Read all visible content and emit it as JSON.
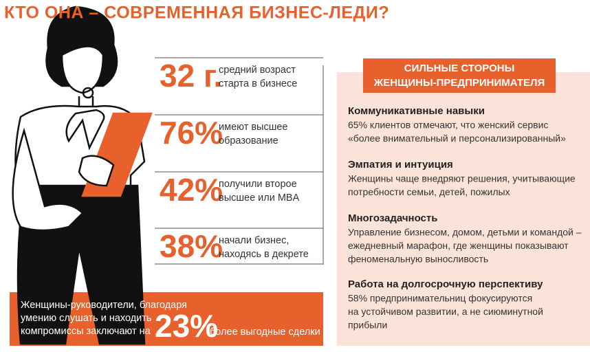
{
  "title": "КТО ОНА – СОВРЕМЕННАЯ БИЗНЕС-ЛЕДИ?",
  "stats": [
    {
      "figure": "32 г.",
      "lines": [
        "средний возраст",
        "старта в бизнесе"
      ]
    },
    {
      "figure": "76%",
      "lines": [
        "имеют высшее",
        "образование"
      ]
    },
    {
      "figure": "42%",
      "lines": [
        "получили второе",
        "высшее или MBA"
      ]
    },
    {
      "figure": "38%",
      "lines": [
        "начали бизнес,",
        "находясь в декрете"
      ]
    }
  ],
  "highlight": {
    "lines": [
      "Женщины-руководители, благодаря",
      "умению слушать и находить",
      "компромиссы заключают на"
    ],
    "figure": "23%",
    "caption": "более выгодные сделки"
  },
  "strengths": {
    "header": [
      "СИЛЬНЫЕ СТОРОНЫ",
      "ЖЕНЩИНЫ-ПРЕДПРИНИМАТЕЛЯ"
    ],
    "items": [
      {
        "heading": "Коммуникативные навыки",
        "lines": [
          "65% клиентов отмечают, что женский сервис",
          "«более внимательный и персонализированный»"
        ]
      },
      {
        "heading": "Эмпатия и интуиция",
        "lines": [
          "Женщины чаще внедряют решения, учитывающие",
          "потребности семьи, детей, пожилых"
        ]
      },
      {
        "heading": "Многозадачность",
        "lines": [
          "Управление бизнесом, домом, детьми и командой –",
          "ежедневный марафон, где женщины показывают",
          "феноменальную выносливость"
        ]
      },
      {
        "heading": "Работа на долгосрочную перспективу",
        "lines": [
          "58% предпринимательниц фокусируются",
          "на устойчивом развитии, а не сиюминутной",
          "прибыли"
        ]
      }
    ]
  }
}
